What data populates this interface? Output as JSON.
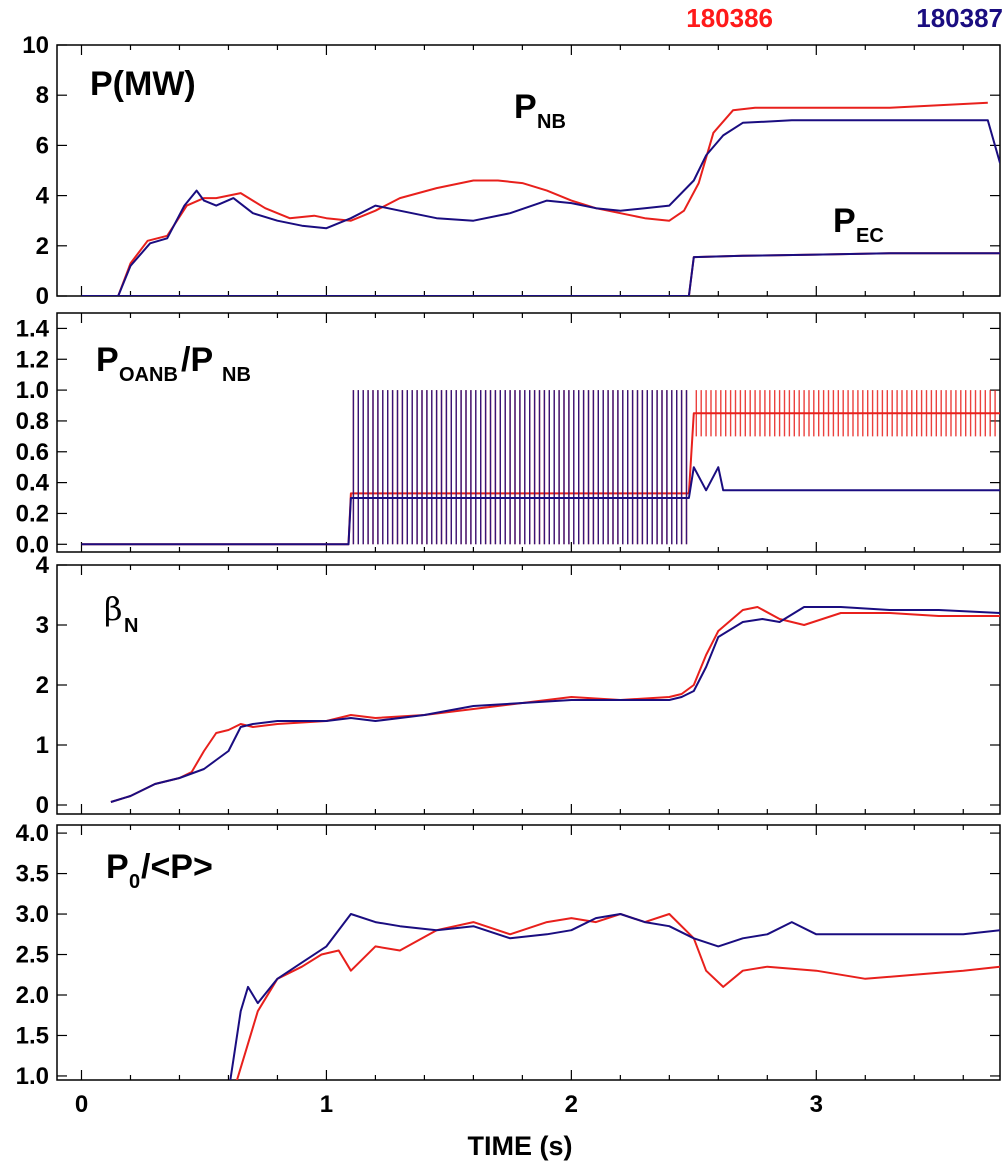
{
  "header": {
    "shot_a": "180386",
    "shot_b": "180387",
    "shot_a_color": "#ff1a1a",
    "shot_b_color": "#1a0d80"
  },
  "panels": {
    "power": {
      "label": "P(MW)",
      "pnb_main": "P",
      "pnb_sub": "NB",
      "pec_main": "P",
      "pec_sub": "EC"
    },
    "fraction": {
      "label_p": "P",
      "sub_oanb": "OANB",
      "label_slash": "/P",
      "sub_nb": "NB"
    },
    "beta": {
      "symbol": "β",
      "sub": "N"
    },
    "peaking": {
      "label_main": "P",
      "label_sub": "0",
      "label_rest": "/<P>"
    }
  },
  "xaxis": {
    "title": "TIME (s)"
  },
  "chart_data": [
    {
      "type": "line",
      "title": "P(MW)",
      "xlabel": "",
      "ylabel": "",
      "xlim": [
        -0.1,
        3.75
      ],
      "ylim": [
        0,
        10
      ],
      "yticks": [
        0,
        2,
        4,
        6,
        8,
        10
      ],
      "annotations": [
        "P_NB",
        "P_EC"
      ],
      "series": [
        {
          "name": "180386",
          "quantity": "P_NB",
          "color": "#e8201c",
          "x": [
            0.0,
            0.15,
            0.2,
            0.27,
            0.35,
            0.43,
            0.5,
            0.55,
            0.65,
            0.75,
            0.85,
            0.95,
            1.0,
            1.1,
            1.2,
            1.3,
            1.45,
            1.6,
            1.7,
            1.8,
            1.9,
            2.0,
            2.1,
            2.2,
            2.3,
            2.4,
            2.46,
            2.52,
            2.58,
            2.66,
            2.75,
            2.9,
            3.1,
            3.3,
            3.5,
            3.7
          ],
          "y": [
            0,
            0,
            1.3,
            2.2,
            2.4,
            3.6,
            3.9,
            3.9,
            4.1,
            3.5,
            3.1,
            3.2,
            3.1,
            3.0,
            3.4,
            3.9,
            4.3,
            4.6,
            4.6,
            4.5,
            4.2,
            3.8,
            3.5,
            3.3,
            3.1,
            3.0,
            3.4,
            4.5,
            6.5,
            7.4,
            7.5,
            7.5,
            7.5,
            7.5,
            7.6,
            7.7
          ]
        },
        {
          "name": "180387",
          "quantity": "P_NB",
          "color": "#1a0d80",
          "x": [
            0.0,
            0.15,
            0.2,
            0.28,
            0.35,
            0.42,
            0.47,
            0.5,
            0.55,
            0.62,
            0.7,
            0.8,
            0.9,
            1.0,
            1.1,
            1.2,
            1.3,
            1.45,
            1.6,
            1.75,
            1.9,
            2.0,
            2.1,
            2.2,
            2.3,
            2.4,
            2.5,
            2.55,
            2.62,
            2.7,
            2.9,
            3.1,
            3.3,
            3.5,
            3.7,
            3.75
          ],
          "y": [
            0,
            0,
            1.2,
            2.1,
            2.3,
            3.6,
            4.2,
            3.8,
            3.6,
            3.9,
            3.3,
            3.0,
            2.8,
            2.7,
            3.1,
            3.6,
            3.4,
            3.1,
            3.0,
            3.3,
            3.8,
            3.7,
            3.5,
            3.4,
            3.5,
            3.6,
            4.6,
            5.6,
            6.4,
            6.9,
            7.0,
            7.0,
            7.0,
            7.0,
            7.0,
            5.3
          ]
        },
        {
          "name": "180386",
          "quantity": "P_EC",
          "color": "#e8201c",
          "x": [
            0.0,
            2.48,
            2.5,
            2.7,
            3.0,
            3.3,
            3.75
          ],
          "y": [
            0.0,
            0.0,
            1.55,
            1.6,
            1.65,
            1.7,
            1.7
          ]
        },
        {
          "name": "180387",
          "quantity": "P_EC",
          "color": "#1a0d80",
          "x": [
            0.0,
            2.48,
            2.5,
            2.7,
            3.0,
            3.3,
            3.75
          ],
          "y": [
            0.0,
            0.0,
            1.55,
            1.6,
            1.65,
            1.7,
            1.7
          ]
        }
      ]
    },
    {
      "type": "line",
      "title": "P_OANB/P_NB",
      "xlim": [
        -0.1,
        3.75
      ],
      "ylim": [
        -0.05,
        1.5
      ],
      "yticks": [
        0.0,
        0.2,
        0.4,
        0.6,
        0.8,
        1.0,
        1.2,
        1.4
      ],
      "series": [
        {
          "name": "180386",
          "color": "#e8201c",
          "x": [
            0.0,
            1.09,
            1.1,
            2.48,
            2.5,
            3.75
          ],
          "y": [
            0.0,
            0.0,
            0.33,
            0.33,
            0.85,
            0.85
          ],
          "range_spikes": [
            [
              1.1,
              2.48,
              0.0,
              1.0
            ],
            [
              2.5,
              3.75,
              0.7,
              1.0
            ]
          ]
        },
        {
          "name": "180387",
          "color": "#1a0d80",
          "x": [
            0.0,
            1.09,
            1.1,
            2.48,
            2.5,
            2.55,
            2.6,
            2.62,
            2.65,
            3.75
          ],
          "y": [
            0.0,
            0.0,
            0.3,
            0.3,
            0.5,
            0.35,
            0.5,
            0.35,
            0.35,
            0.35
          ],
          "range_spikes": [
            [
              1.1,
              2.48,
              0.0,
              1.0
            ]
          ]
        }
      ]
    },
    {
      "type": "line",
      "title": "β_N",
      "xlim": [
        -0.1,
        3.75
      ],
      "ylim": [
        -0.15,
        4
      ],
      "yticks": [
        0,
        1,
        2,
        3,
        4
      ],
      "series": [
        {
          "name": "180386",
          "color": "#e8201c",
          "x": [
            0.12,
            0.2,
            0.3,
            0.4,
            0.45,
            0.5,
            0.55,
            0.6,
            0.65,
            0.7,
            0.8,
            1.0,
            1.1,
            1.2,
            1.4,
            1.6,
            1.8,
            2.0,
            2.2,
            2.4,
            2.45,
            2.5,
            2.55,
            2.6,
            2.7,
            2.76,
            2.85,
            2.95,
            3.1,
            3.3,
            3.5,
            3.75
          ],
          "y": [
            0.05,
            0.15,
            0.35,
            0.45,
            0.55,
            0.9,
            1.2,
            1.25,
            1.35,
            1.3,
            1.35,
            1.4,
            1.5,
            1.45,
            1.5,
            1.6,
            1.7,
            1.8,
            1.75,
            1.8,
            1.85,
            2.0,
            2.5,
            2.9,
            3.25,
            3.3,
            3.1,
            3.0,
            3.2,
            3.2,
            3.15,
            3.15
          ]
        },
        {
          "name": "180387",
          "color": "#1a0d80",
          "x": [
            0.12,
            0.2,
            0.3,
            0.4,
            0.5,
            0.55,
            0.6,
            0.65,
            0.7,
            0.8,
            1.0,
            1.1,
            1.2,
            1.4,
            1.6,
            1.8,
            2.0,
            2.2,
            2.4,
            2.45,
            2.5,
            2.55,
            2.6,
            2.7,
            2.78,
            2.85,
            2.95,
            3.1,
            3.3,
            3.5,
            3.75
          ],
          "y": [
            0.05,
            0.15,
            0.35,
            0.45,
            0.6,
            0.75,
            0.9,
            1.3,
            1.35,
            1.4,
            1.4,
            1.45,
            1.4,
            1.5,
            1.65,
            1.7,
            1.75,
            1.75,
            1.75,
            1.8,
            1.9,
            2.3,
            2.8,
            3.05,
            3.1,
            3.05,
            3.3,
            3.3,
            3.25,
            3.25,
            3.2
          ]
        }
      ]
    },
    {
      "type": "line",
      "title": "P_0/<P>",
      "xlim": [
        -0.1,
        3.75
      ],
      "ylim": [
        0.95,
        4.1
      ],
      "yticks": [
        1.0,
        1.5,
        2.0,
        2.5,
        3.0,
        3.5,
        4.0
      ],
      "series": [
        {
          "name": "180386",
          "color": "#e8201c",
          "x": [
            0.6,
            0.63,
            0.67,
            0.72,
            0.8,
            0.9,
            0.98,
            1.05,
            1.1,
            1.2,
            1.3,
            1.45,
            1.6,
            1.75,
            1.9,
            2.0,
            2.1,
            2.2,
            2.3,
            2.4,
            2.5,
            2.55,
            2.62,
            2.7,
            2.8,
            3.0,
            3.2,
            3.4,
            3.6,
            3.75
          ],
          "y": [
            0.7,
            0.9,
            1.3,
            1.8,
            2.2,
            2.35,
            2.5,
            2.55,
            2.3,
            2.6,
            2.55,
            2.8,
            2.9,
            2.75,
            2.9,
            2.95,
            2.9,
            3.0,
            2.9,
            3.0,
            2.7,
            2.3,
            2.1,
            2.3,
            2.35,
            2.3,
            2.2,
            2.25,
            2.3,
            2.35
          ]
        },
        {
          "name": "180387",
          "color": "#1a0d80",
          "x": [
            0.6,
            0.62,
            0.65,
            0.68,
            0.72,
            0.8,
            0.9,
            1.0,
            1.1,
            1.2,
            1.3,
            1.45,
            1.6,
            1.75,
            1.9,
            2.0,
            2.1,
            2.2,
            2.3,
            2.4,
            2.5,
            2.6,
            2.7,
            2.8,
            2.9,
            3.0,
            3.2,
            3.4,
            3.6,
            3.75
          ],
          "y": [
            0.8,
            1.2,
            1.8,
            2.1,
            1.9,
            2.2,
            2.4,
            2.6,
            3.0,
            2.9,
            2.85,
            2.8,
            2.85,
            2.7,
            2.75,
            2.8,
            2.95,
            3.0,
            2.9,
            2.85,
            2.7,
            2.6,
            2.7,
            2.75,
            2.9,
            2.75,
            2.75,
            2.75,
            2.75,
            2.8
          ]
        }
      ]
    }
  ]
}
